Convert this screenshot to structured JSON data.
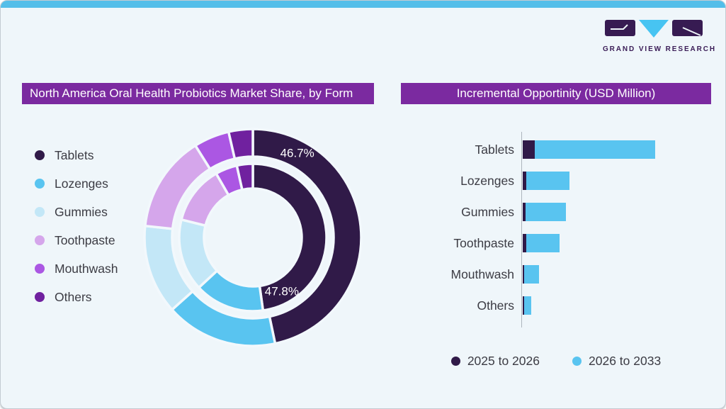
{
  "window": {
    "background": "#EFF6FA",
    "top_strip_color": "#54BEE9",
    "frame_border_color": "#C3CBD2"
  },
  "logo": {
    "wordmark": "GRAND VIEW RESEARCH",
    "block_color": "#371B52",
    "accent_color": "#47C4F2"
  },
  "left_panel": {
    "title": "North America Oral Health Probiotics Market Share, by Form",
    "title_bg": "#7B2AA0",
    "title_color": "#FFFFFF",
    "legend_items": [
      {
        "label": "Tablets",
        "color": "#301A48"
      },
      {
        "label": "Lozenges",
        "color": "#59C4F0"
      },
      {
        "label": "Gummies",
        "color": "#C3E7F7"
      },
      {
        "label": "Toothpaste",
        "color": "#D5A6EB"
      },
      {
        "label": "Mouthwash",
        "color": "#AB57E3"
      },
      {
        "label": "Others",
        "color": "#70219F"
      }
    ]
  },
  "right_panel": {
    "title": "Incremental Opportinity (USD Million)",
    "title_bg": "#7B2AA0",
    "title_color": "#FFFFFF",
    "legend_items": [
      {
        "label": "2025 to 2026",
        "color": "#301A48"
      },
      {
        "label": "2026 to 2033",
        "color": "#59C4F0"
      }
    ]
  },
  "chart_data": [
    {
      "type": "pie",
      "subtype": "double-ring donut",
      "title": "North America Oral Health Probiotics Market Share, by Form",
      "categories": [
        "Tablets",
        "Lozenges",
        "Gummies",
        "Toothpaste",
        "Mouthwash",
        "Others"
      ],
      "colors": [
        "#301A48",
        "#59C4F0",
        "#C3E7F7",
        "#D5A6EB",
        "#AB57E3",
        "#70219F"
      ],
      "start_angle_deg": 0,
      "direction": "clockwise",
      "rings": [
        {
          "position": "outer",
          "values_pct": [
            46.7,
            16.7,
            13.3,
            14.4,
            5.3,
            3.6
          ],
          "labeled": {
            "Tablets": "46.7%"
          },
          "values_estimated_except_tablets": true
        },
        {
          "position": "inner",
          "values_pct": [
            47.8,
            15.3,
            15.8,
            12.8,
            4.8,
            3.5
          ],
          "labeled": {
            "Tablets": "47.8%"
          },
          "values_estimated_except_tablets": true
        }
      ],
      "shown_labels": [
        {
          "text": "46.7%",
          "ring": "outer",
          "category": "Tablets"
        },
        {
          "text": "47.8%",
          "ring": "inner",
          "category": "Tablets"
        }
      ],
      "legend_position": "left"
    },
    {
      "type": "bar",
      "orientation": "horizontal",
      "stacked": true,
      "title": "Incremental Opportinity (USD Million)",
      "categories": [
        "Tablets",
        "Lozenges",
        "Gummies",
        "Toothpaste",
        "Mouthwash",
        "Others"
      ],
      "series": [
        {
          "name": "2025 to 2026",
          "color": "#301A48",
          "values": [
            17,
            5,
            4,
            5,
            2,
            2
          ]
        },
        {
          "name": "2026 to 2033",
          "color": "#59C4F0",
          "values": [
            170,
            61,
            57,
            47,
            21,
            10
          ]
        }
      ],
      "values_unit": "relative bar length (value axis not labeled in figure)",
      "values_estimated": true,
      "grid": false,
      "legend_position": "bottom"
    }
  ]
}
